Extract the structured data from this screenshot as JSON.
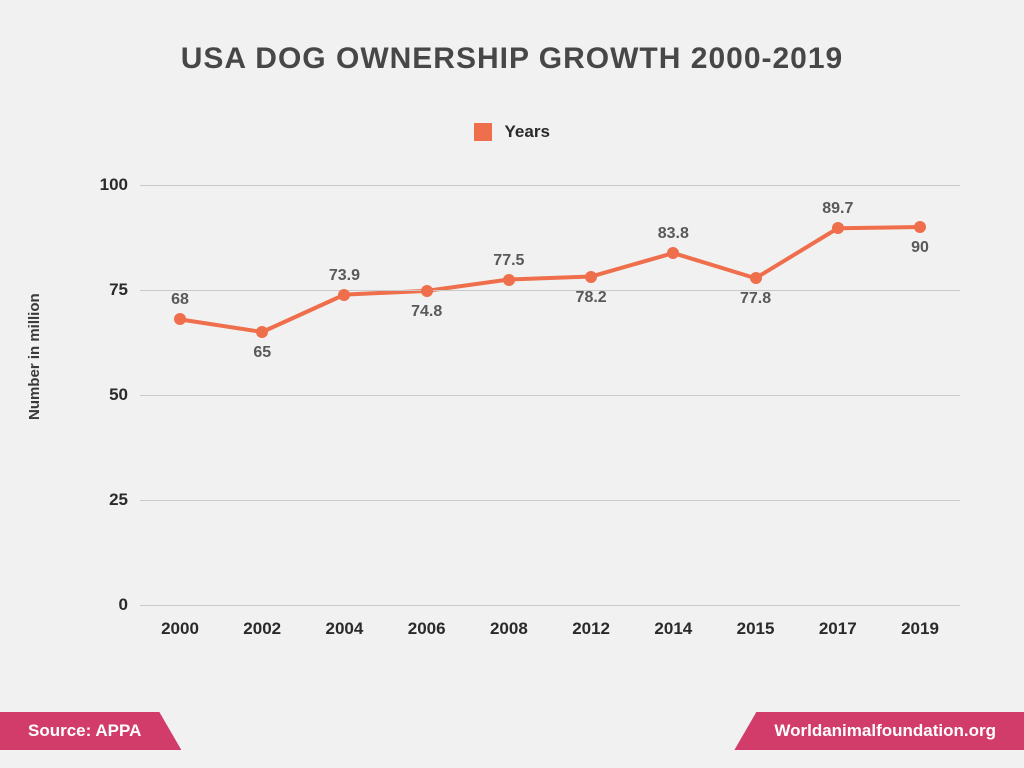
{
  "title": "USA DOG OWNERSHIP GROWTH 2000-2019",
  "legend_label": "Years",
  "y_axis_label": "Number in million",
  "chart": {
    "type": "line",
    "categories": [
      "2000",
      "2002",
      "2004",
      "2006",
      "2008",
      "2012",
      "2014",
      "2015",
      "2017",
      "2019"
    ],
    "values": [
      68,
      65,
      73.9,
      74.8,
      77.5,
      78.2,
      83.8,
      77.8,
      89.7,
      90
    ],
    "value_labels": [
      "68",
      "65",
      "73.9",
      "74.8",
      "77.5",
      "78.2",
      "83.8",
      "77.8",
      "89.7",
      "90"
    ],
    "label_above": [
      true,
      false,
      true,
      false,
      true,
      false,
      true,
      false,
      true,
      false
    ],
    "line_color": "#ef6e4b",
    "marker_color": "#ef6e4b",
    "line_width": 4,
    "marker_radius": 6,
    "ylim": [
      0,
      100
    ],
    "yticks": [
      0,
      25,
      50,
      75,
      100
    ],
    "grid_color": "#c9c9c9",
    "background_color": "#f1f1f1",
    "title_color": "#474747",
    "label_fontsize": 16,
    "data_label_color": "#595959"
  },
  "footer": {
    "source_text": "Source: APPA",
    "site_text": "Worldanimalfoundation.org",
    "ribbon_color": "#d13c6a"
  }
}
